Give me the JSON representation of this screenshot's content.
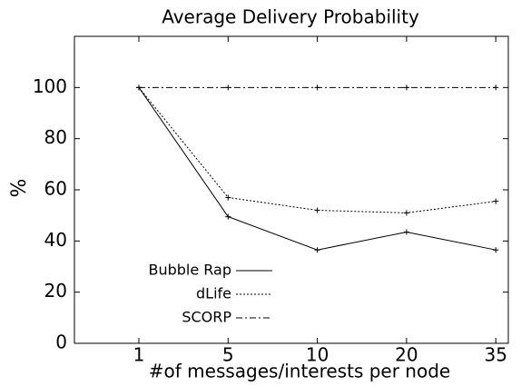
{
  "chart_data": {
    "type": "line",
    "title": "Average Delivery Probability",
    "xlabel": "#of messages/interests per node",
    "ylabel": "%",
    "categories": [
      "1",
      "5",
      "10",
      "20",
      "35"
    ],
    "series": [
      {
        "name": "Bubble Rap",
        "color": "#000000",
        "dash": "solid",
        "values": [
          100,
          49.5,
          36.5,
          43.5,
          36.5
        ]
      },
      {
        "name": "dLife",
        "color": "#000000",
        "dash": "dotted",
        "values": [
          100,
          57,
          52,
          51,
          55.5
        ]
      },
      {
        "name": "SCORP",
        "color": "#000000",
        "dash": "dashdot",
        "values": [
          100,
          100,
          100,
          100,
          100
        ]
      }
    ],
    "ylim": [
      0,
      120
    ],
    "yticks": [
      0,
      20,
      40,
      60,
      80,
      100
    ],
    "legend": "lower left"
  }
}
